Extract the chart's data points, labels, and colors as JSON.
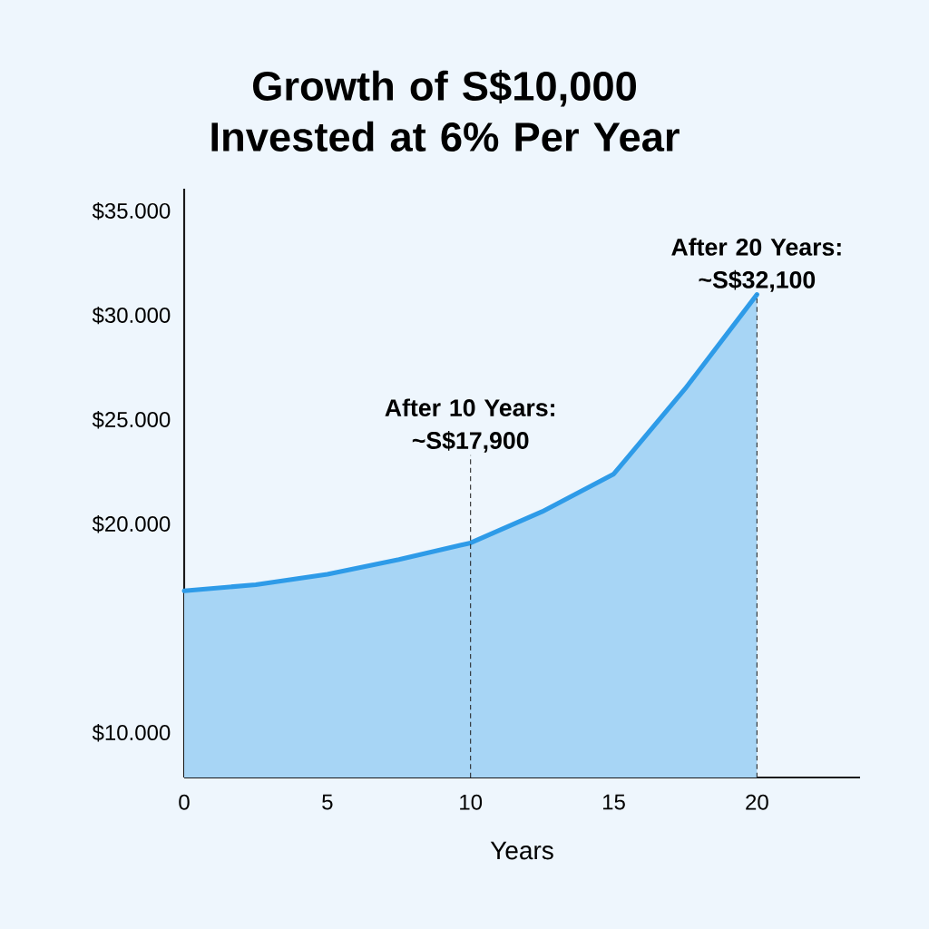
{
  "chart_data": {
    "type": "area",
    "title": "Growth of S$10,000 Invested at 6% Per Year",
    "xlabel": "Years",
    "x": [
      0,
      2.5,
      5,
      7.5,
      10,
      12.5,
      15,
      17.5,
      20
    ],
    "values": [
      16800,
      17100,
      17600,
      18300,
      19100,
      20600,
      22400,
      26500,
      31000
    ],
    "color": "#2e9be8",
    "xlim": [
      0,
      23.6
    ],
    "ylim": [
      7860,
      36070
    ],
    "xticks": [
      0,
      5,
      10,
      15,
      20
    ],
    "yticks": [
      {
        "value": 10000,
        "label": "$10.000"
      },
      {
        "value": 20000,
        "label": "$20.000"
      },
      {
        "value": 25000,
        "label": "$25.000"
      },
      {
        "value": 30000,
        "label": "$30.000"
      },
      {
        "value": 35000,
        "label": "$35.000"
      }
    ],
    "annotations": [
      {
        "text": "After 10 Years: ~S$17,900",
        "x": 10,
        "y": 23300
      },
      {
        "text": "After 20 Years: ~S$32,100",
        "x": 20,
        "y": 31000
      }
    ],
    "ref_lines": [
      {
        "axis": "x",
        "value": 10,
        "line_style": "dashed"
      },
      {
        "axis": "x",
        "value": 20,
        "line_style": "dashed"
      }
    ],
    "grid": false
  }
}
